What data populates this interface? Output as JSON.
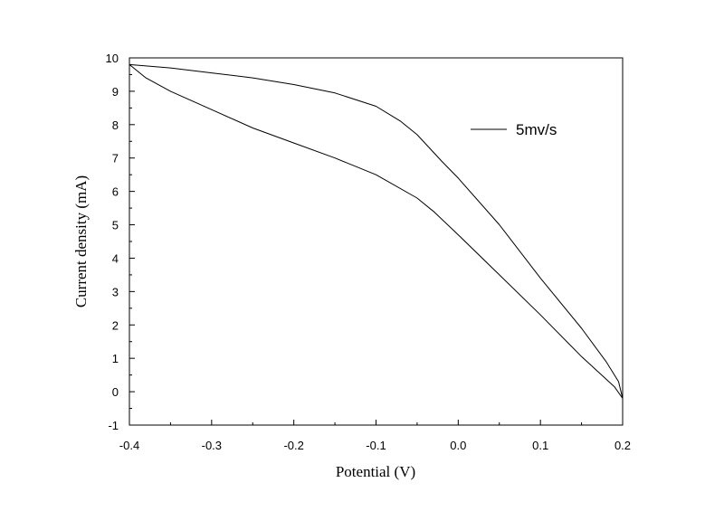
{
  "chart_data": {
    "type": "line",
    "title": "",
    "xlabel": "Potential (V)",
    "ylabel": "Current density (mA)",
    "xlim": [
      -0.4,
      0.2
    ],
    "ylim": [
      -1,
      10
    ],
    "x_ticks": [
      -0.4,
      -0.3,
      -0.2,
      -0.1,
      0.0,
      0.1,
      0.2
    ],
    "x_tick_labels": [
      "-0.4",
      "-0.3",
      "-0.2",
      "-0.1",
      "0.0",
      "0.1",
      "0.2"
    ],
    "y_ticks": [
      -1,
      0,
      1,
      2,
      3,
      4,
      5,
      6,
      7,
      8,
      9,
      10
    ],
    "y_tick_labels": [
      "-1",
      "0",
      "1",
      "2",
      "3",
      "4",
      "5",
      "6",
      "7",
      "8",
      "9",
      "10"
    ],
    "grid": false,
    "legend_position": "top-right",
    "series": [
      {
        "name": "5mv/s",
        "color": "#000000",
        "x": [
          -0.4,
          -0.35,
          -0.3,
          -0.25,
          -0.2,
          -0.15,
          -0.1,
          -0.07,
          -0.05,
          -0.02,
          0.0,
          0.05,
          0.1,
          0.15,
          0.18,
          0.195,
          0.2,
          0.2,
          0.19,
          0.15,
          0.1,
          0.05,
          0.0,
          -0.03,
          -0.05,
          -0.1,
          -0.15,
          -0.2,
          -0.25,
          -0.3,
          -0.35,
          -0.38,
          -0.4
        ],
        "y": [
          9.8,
          9.7,
          9.55,
          9.4,
          9.2,
          8.95,
          8.55,
          8.1,
          7.7,
          6.9,
          6.4,
          5.0,
          3.4,
          1.9,
          0.9,
          0.3,
          -0.2,
          -0.2,
          0.15,
          1.05,
          2.3,
          3.5,
          4.7,
          5.4,
          5.8,
          6.5,
          7.0,
          7.45,
          7.9,
          8.45,
          9.0,
          9.4,
          9.8
        ]
      }
    ]
  }
}
